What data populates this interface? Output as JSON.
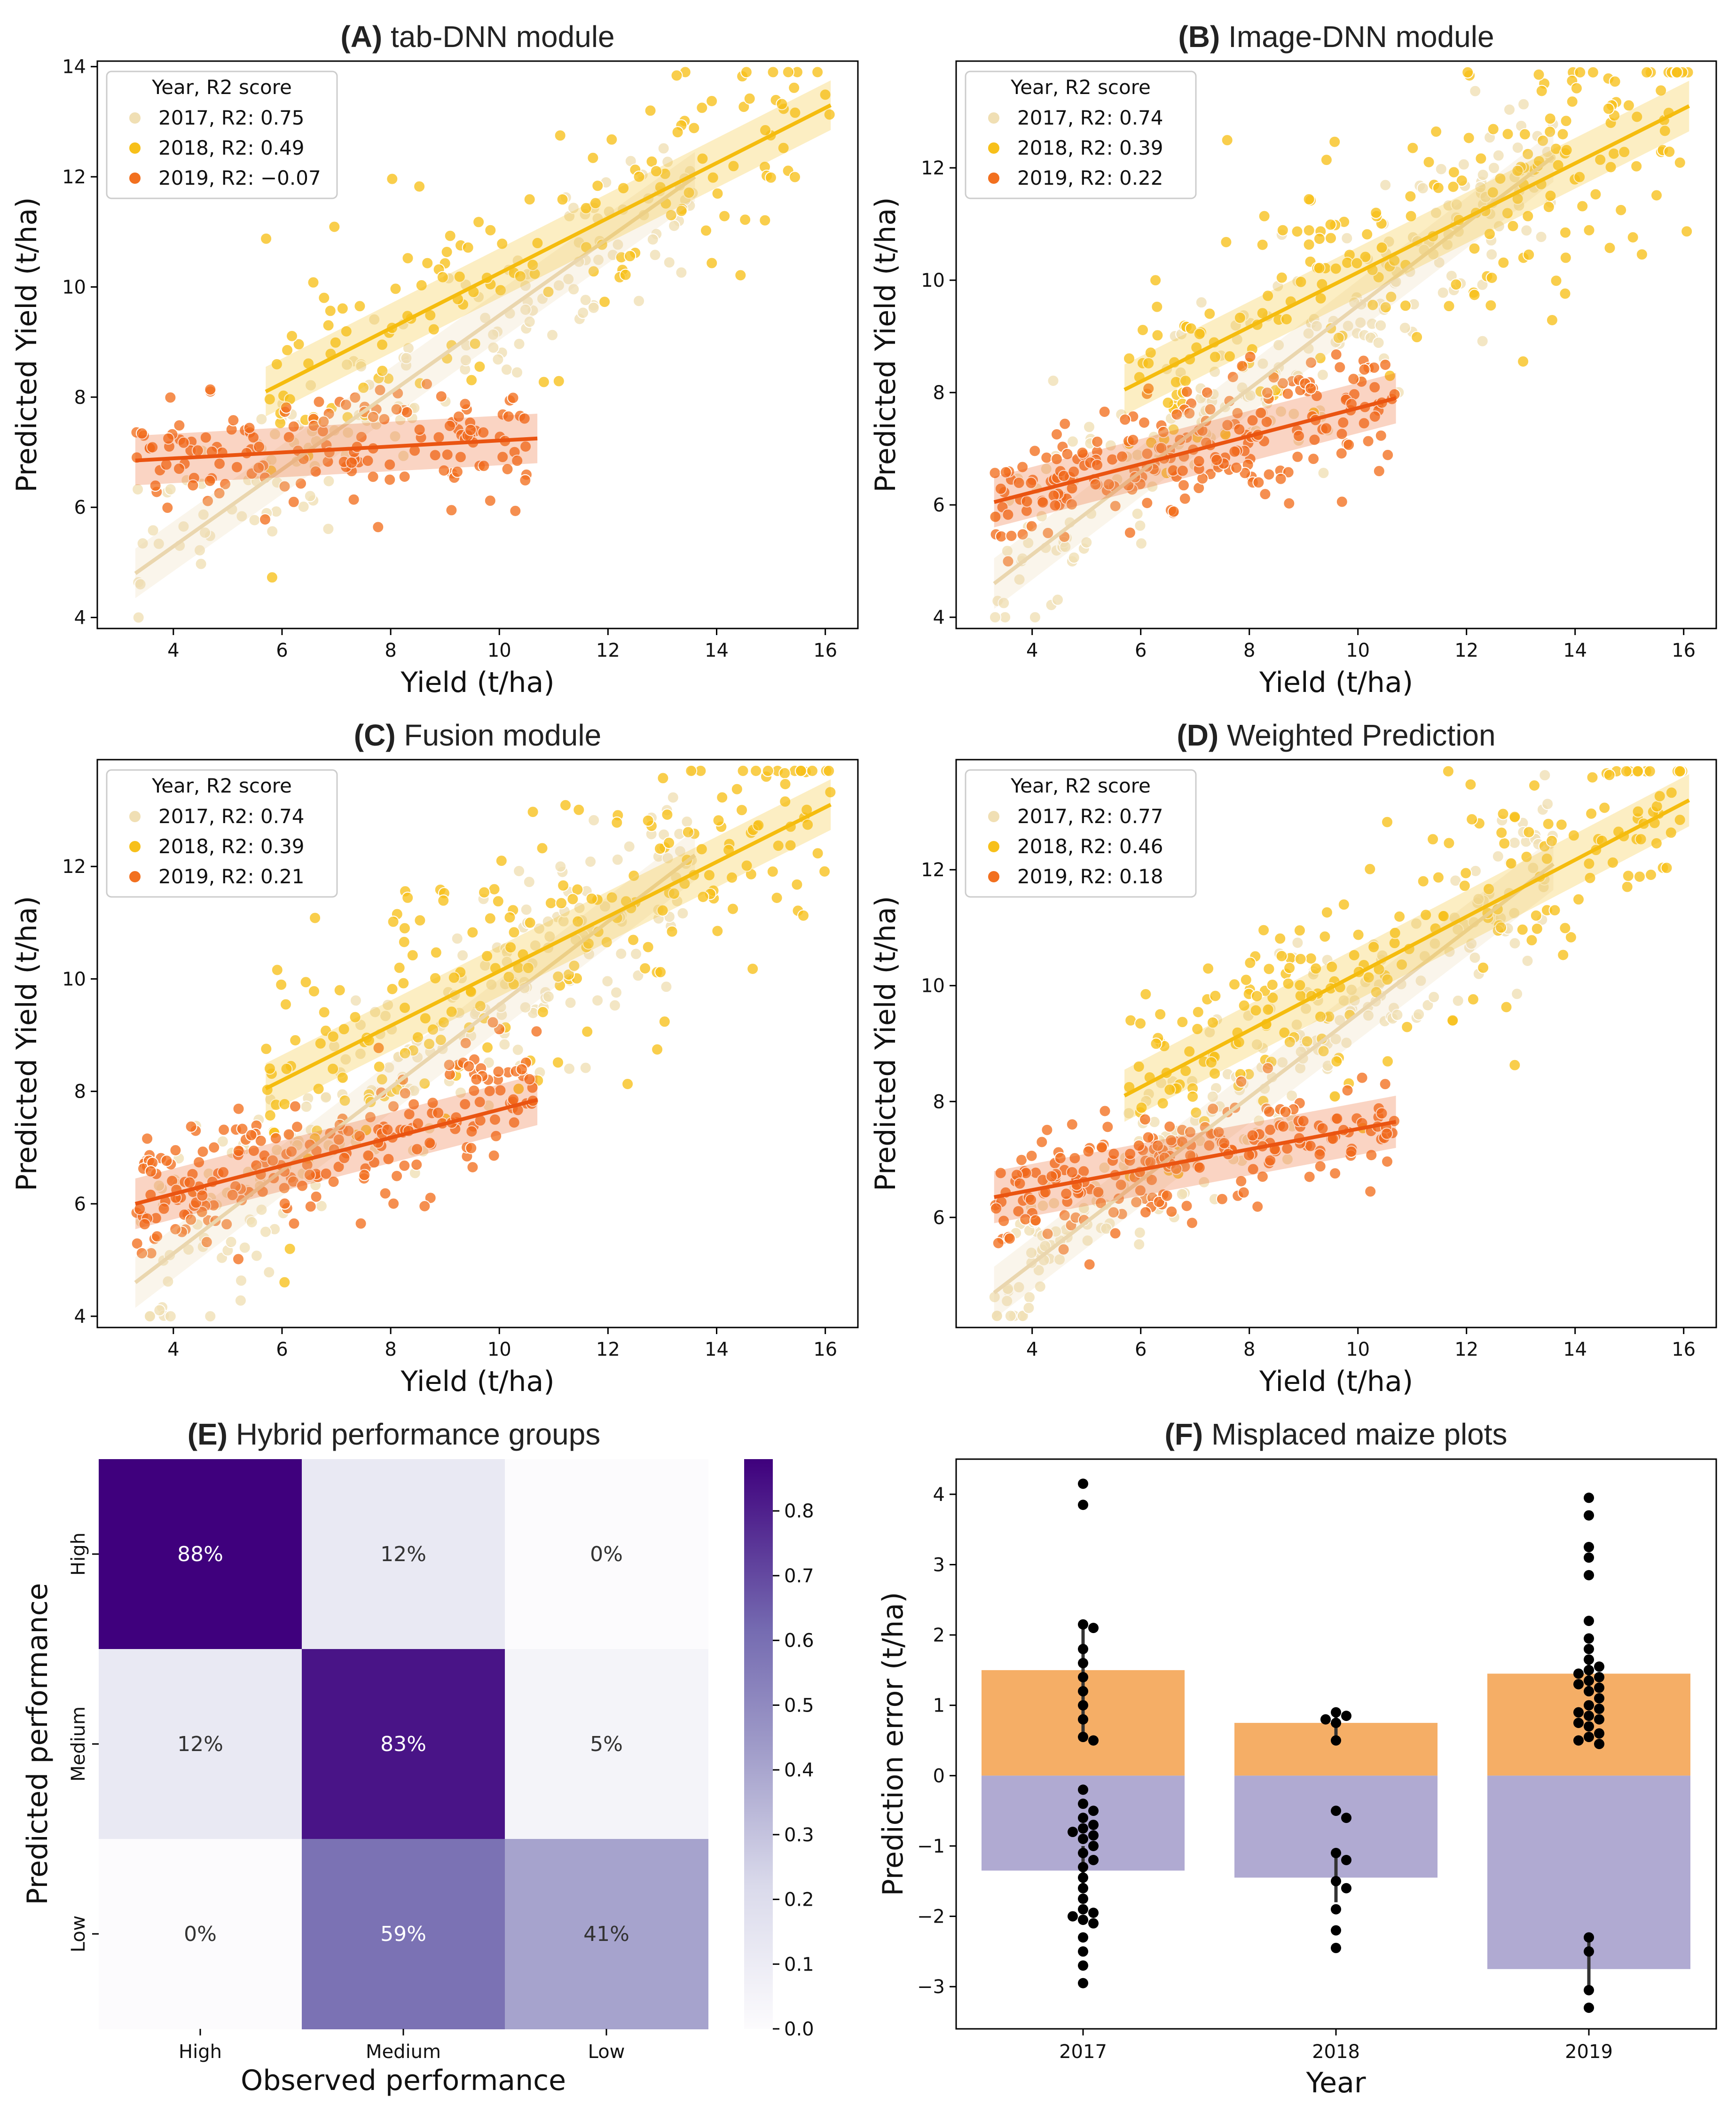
{
  "colors": {
    "y2017": "#f0dfb4",
    "y2018": "#f7c01a",
    "y2019": "#f2701f",
    "line2017": "#ead6ae",
    "line2018": "#f5bc0e",
    "line2019": "#ea5411",
    "heat_high": "#3f007d",
    "heat_low": "#fcfbfd",
    "bar_pos": "#f5ae66",
    "bar_neg": "#b0aad2"
  },
  "chart_data": [
    {
      "type": "scatter",
      "panel": "A",
      "title_letter": "(A)",
      "title_text": "tab-DNN module",
      "xlabel": "Yield (t/ha)",
      "ylabel": "Predicted Yield (t/ha)",
      "xlim": [
        2.6,
        16.6
      ],
      "ylim": [
        3.8,
        14.1
      ],
      "xticks": [
        "4",
        "6",
        "8",
        "10",
        "12",
        "14",
        "16"
      ],
      "yticks": [
        "4",
        "6",
        "8",
        "10",
        "12",
        "14"
      ],
      "legend_title": "Year, R2 score",
      "legend": [
        "2017, R2: 0.75",
        "2018, R2: 0.49",
        "2019, R2: −0.07"
      ],
      "series": [
        {
          "name": "2017",
          "fit": {
            "x": [
              3.3,
              13.6
            ],
            "y": [
              4.8,
              12.0
            ]
          },
          "cloud": {
            "x": [
              3.3,
              13.6
            ],
            "slope": 0.7,
            "intercept": 2.5,
            "spread": 0.7,
            "n": 150
          }
        },
        {
          "name": "2018",
          "fit": {
            "x": [
              5.7,
              16.1
            ],
            "y": [
              8.1,
              13.3
            ]
          },
          "cloud": {
            "x": [
              5.7,
              16.1
            ],
            "slope": 0.5,
            "intercept": 5.3,
            "spread": 1.0,
            "n": 150
          }
        },
        {
          "name": "2019",
          "fit": {
            "x": [
              3.3,
              10.7
            ],
            "y": [
              6.85,
              7.25
            ]
          },
          "cloud": {
            "x": [
              3.3,
              10.7
            ],
            "slope": 0.05,
            "intercept": 6.7,
            "spread": 0.5,
            "n": 150
          }
        }
      ]
    },
    {
      "type": "scatter",
      "panel": "B",
      "title_letter": "(B)",
      "title_text": "Image-DNN module",
      "xlabel": "Yield (t/ha)",
      "ylabel": "Predicted Yield (t/ha)",
      "xlim": [
        2.6,
        16.6
      ],
      "ylim": [
        3.8,
        13.9
      ],
      "xticks": [
        "4",
        "6",
        "8",
        "10",
        "12",
        "14",
        "16"
      ],
      "yticks": [
        "4",
        "6",
        "8",
        "10",
        "12"
      ],
      "legend_title": "Year, R2 score",
      "legend": [
        "2017, R2: 0.74",
        "2018, R2: 0.39",
        "2019, R2: 0.22"
      ],
      "series": [
        {
          "name": "2017",
          "fit": {
            "x": [
              3.3,
              13.6
            ],
            "y": [
              4.6,
              12.2
            ]
          },
          "cloud": {
            "x": [
              3.3,
              13.6
            ],
            "slope": 0.74,
            "intercept": 2.2,
            "spread": 0.9,
            "n": 220
          }
        },
        {
          "name": "2018",
          "fit": {
            "x": [
              5.7,
              16.1
            ],
            "y": [
              8.05,
              13.1
            ]
          },
          "cloud": {
            "x": [
              5.7,
              16.1
            ],
            "slope": 0.49,
            "intercept": 5.3,
            "spread": 1.1,
            "n": 220
          }
        },
        {
          "name": "2019",
          "fit": {
            "x": [
              3.3,
              10.7
            ],
            "y": [
              6.05,
              7.9
            ]
          },
          "cloud": {
            "x": [
              3.3,
              10.7
            ],
            "slope": 0.25,
            "intercept": 5.2,
            "spread": 0.6,
            "n": 220
          }
        }
      ]
    },
    {
      "type": "scatter",
      "panel": "C",
      "title_letter": "(C)",
      "title_text": "Fusion module",
      "xlabel": "Yield (t/ha)",
      "ylabel": "Predicted Yield (t/ha)",
      "xlim": [
        2.6,
        16.6
      ],
      "ylim": [
        3.8,
        13.9
      ],
      "xticks": [
        "4",
        "6",
        "8",
        "10",
        "12",
        "14",
        "16"
      ],
      "yticks": [
        "4",
        "6",
        "8",
        "10",
        "12"
      ],
      "legend_title": "Year, R2 score",
      "legend": [
        "2017, R2: 0.74",
        "2018, R2: 0.39",
        "2019, R2: 0.21"
      ],
      "series": [
        {
          "name": "2017",
          "fit": {
            "x": [
              3.3,
              13.6
            ],
            "y": [
              4.6,
              12.2
            ]
          },
          "cloud": {
            "x": [
              3.3,
              13.6
            ],
            "slope": 0.74,
            "intercept": 2.2,
            "spread": 0.9,
            "n": 220
          }
        },
        {
          "name": "2018",
          "fit": {
            "x": [
              5.7,
              16.1
            ],
            "y": [
              8.05,
              13.1
            ]
          },
          "cloud": {
            "x": [
              5.7,
              16.1
            ],
            "slope": 0.49,
            "intercept": 5.3,
            "spread": 1.1,
            "n": 220
          }
        },
        {
          "name": "2019",
          "fit": {
            "x": [
              3.3,
              10.7
            ],
            "y": [
              6.0,
              7.85
            ]
          },
          "cloud": {
            "x": [
              3.3,
              10.7
            ],
            "slope": 0.25,
            "intercept": 5.2,
            "spread": 0.6,
            "n": 220
          }
        }
      ]
    },
    {
      "type": "scatter",
      "panel": "D",
      "title_letter": "(D)",
      "title_text": "Weighted Prediction",
      "xlabel": "Yield (t/ha)",
      "ylabel": "Predicted Yield (t/ha)",
      "xlim": [
        2.6,
        16.6
      ],
      "ylim": [
        4.1,
        13.9
      ],
      "xticks": [
        "4",
        "6",
        "8",
        "10",
        "12",
        "14",
        "16"
      ],
      "yticks": [
        "6",
        "8",
        "10",
        "12"
      ],
      "legend_title": "Year, R2 score",
      "legend": [
        "2017, R2: 0.77",
        "2018, R2: 0.46",
        "2019, R2: 0.18"
      ],
      "series": [
        {
          "name": "2017",
          "fit": {
            "x": [
              3.3,
              13.6
            ],
            "y": [
              4.7,
              12.1
            ]
          },
          "cloud": {
            "x": [
              3.3,
              13.6
            ],
            "slope": 0.72,
            "intercept": 2.4,
            "spread": 0.8,
            "n": 220
          }
        },
        {
          "name": "2018",
          "fit": {
            "x": [
              5.7,
              16.1
            ],
            "y": [
              8.1,
              13.2
            ]
          },
          "cloud": {
            "x": [
              5.7,
              16.1
            ],
            "slope": 0.49,
            "intercept": 5.3,
            "spread": 0.9,
            "n": 220
          }
        },
        {
          "name": "2019",
          "fit": {
            "x": [
              3.3,
              10.7
            ],
            "y": [
              6.35,
              7.65
            ]
          },
          "cloud": {
            "x": [
              3.3,
              10.7
            ],
            "slope": 0.18,
            "intercept": 5.8,
            "spread": 0.45,
            "n": 220
          }
        }
      ]
    },
    {
      "type": "heatmap",
      "panel": "E",
      "title_letter": "(E)",
      "title_text": "Hybrid performance groups",
      "xlabel": "Observed performance",
      "ylabel": "Predicted performance",
      "x_categories": [
        "High",
        "Medium",
        "Low"
      ],
      "y_categories": [
        "High",
        "Medium",
        "Low"
      ],
      "values": [
        [
          0.88,
          0.12,
          0.0
        ],
        [
          0.12,
          0.83,
          0.05
        ],
        [
          0.0,
          0.59,
          0.41
        ]
      ],
      "labels": [
        [
          "88%",
          "12%",
          "0%"
        ],
        [
          "12%",
          "83%",
          "5%"
        ],
        [
          "0%",
          "59%",
          "41%"
        ]
      ],
      "colorbar_range": [
        0.0,
        0.88
      ],
      "colorbar_ticks": [
        "0.0",
        "0.1",
        "0.2",
        "0.3",
        "0.4",
        "0.5",
        "0.6",
        "0.7",
        "0.8"
      ]
    },
    {
      "type": "bar",
      "panel": "F",
      "title_letter": "(F)",
      "title_text": "Misplaced maize plots",
      "xlabel": "Year",
      "ylabel": "Prediction error (t/ha)",
      "categories": [
        "2017",
        "2018",
        "2019"
      ],
      "positive_means": [
        1.5,
        0.75,
        1.45
      ],
      "negative_means": [
        -1.35,
        -1.45,
        -2.75
      ],
      "ylim": [
        -3.6,
        4.5
      ],
      "yticks": [
        "4",
        "3",
        "2",
        "1",
        "0",
        "−1",
        "−2",
        "−3"
      ],
      "points": [
        [
          4.15,
          3.85,
          2.15,
          2.1,
          1.8,
          1.6,
          1.4,
          1.2,
          1.0,
          0.8,
          0.55,
          0.5,
          -0.2,
          -0.4,
          -0.5,
          -0.6,
          -0.7,
          -0.75,
          -0.8,
          -0.85,
          -0.9,
          -1.0,
          -1.1,
          -1.2,
          -1.3,
          -1.45,
          -1.6,
          -1.75,
          -1.9,
          -1.95,
          -2.0,
          -2.05,
          -2.1,
          -2.3,
          -2.5,
          -2.7,
          -2.95
        ],
        [
          0.9,
          0.85,
          0.8,
          0.75,
          0.5,
          -0.5,
          -0.6,
          -1.1,
          -1.2,
          -1.5,
          -1.6,
          -1.9,
          -2.2,
          -2.45
        ],
        [
          3.95,
          3.7,
          3.25,
          3.1,
          2.85,
          2.2,
          1.95,
          1.8,
          1.65,
          1.55,
          1.5,
          1.45,
          1.4,
          1.35,
          1.3,
          1.25,
          1.2,
          1.1,
          1.0,
          0.95,
          0.9,
          0.85,
          0.8,
          0.75,
          0.7,
          0.6,
          0.55,
          0.5,
          0.45,
          -2.3,
          -2.5,
          -3.05,
          -3.3
        ]
      ]
    }
  ]
}
